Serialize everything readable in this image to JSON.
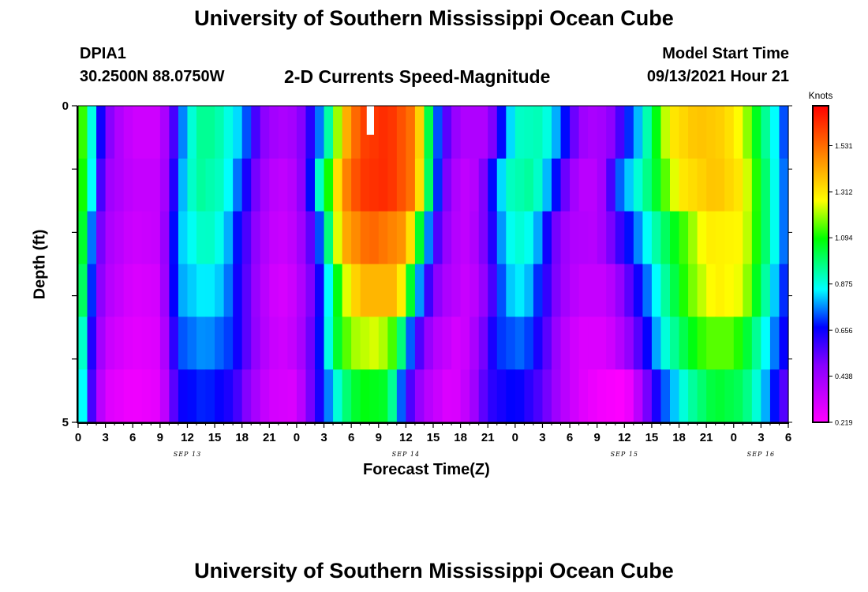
{
  "header": {
    "title": "University of Southern Mississippi Ocean Cube",
    "station": "DPIA1",
    "coords": "30.2500N  88.0750W",
    "subtitle": "2-D Currents Speed-Magnitude",
    "model_start_label": "Model Start Time",
    "model_start_value": "09/13/2021 Hour 21"
  },
  "footer": {
    "title": "University of Southern Mississippi Ocean Cube"
  },
  "chart_data": {
    "type": "heatmap",
    "xlabel": "Forecast Time(Z)",
    "ylabel": "Depth (ft)",
    "y_ticks": [
      "0",
      "5"
    ],
    "ylim": [
      0,
      5
    ],
    "x_ticks": [
      "0",
      "3",
      "6",
      "9",
      "12",
      "15",
      "18",
      "21",
      "0",
      "3",
      "6",
      "9",
      "12",
      "15",
      "18",
      "21",
      "0",
      "3",
      "6",
      "9",
      "12",
      "15",
      "18",
      "21",
      "0",
      "3",
      "6"
    ],
    "date_labels": [
      {
        "hour_offset": 12,
        "label": "SEP 13"
      },
      {
        "hour_offset": 36,
        "label": "SEP 14"
      },
      {
        "hour_offset": 60,
        "label": "SEP 15"
      },
      {
        "hour_offset": 75,
        "label": "SEP 16"
      }
    ],
    "x_range_hours": [
      0,
      78
    ],
    "colorbar": {
      "title": "Knots",
      "ticks": [
        0.219,
        0.438,
        0.656,
        0.875,
        1.094,
        1.312,
        1.531
      ],
      "range": [
        0.219,
        1.72
      ]
    },
    "depth_layers": [
      {
        "depth": 0.0,
        "anchors": [
          [
            0,
            1.25
          ],
          [
            1,
            1.0
          ],
          [
            2,
            0.75
          ],
          [
            3,
            0.55
          ],
          [
            4,
            0.42
          ],
          [
            6,
            0.33
          ],
          [
            8.5,
            0.33
          ],
          [
            10,
            0.45
          ],
          [
            11,
            0.7
          ],
          [
            13,
            0.95
          ],
          [
            15,
            0.95
          ],
          [
            18,
            0.8
          ],
          [
            20,
            0.5
          ],
          [
            22,
            0.4
          ],
          [
            24,
            0.43
          ],
          [
            25,
            0.55
          ],
          [
            27,
            0.82
          ],
          [
            28,
            1.05
          ],
          [
            29,
            1.35
          ],
          [
            31,
            1.6
          ],
          [
            34,
            1.65
          ],
          [
            37,
            1.5
          ],
          [
            38,
            1.2
          ],
          [
            39,
            0.85
          ],
          [
            40,
            0.6
          ],
          [
            42,
            0.4
          ],
          [
            45,
            0.4
          ],
          [
            46,
            0.6
          ],
          [
            48,
            0.9
          ],
          [
            51,
            0.92
          ],
          [
            53,
            0.75
          ],
          [
            55,
            0.45
          ],
          [
            57,
            0.4
          ],
          [
            59,
            0.5
          ],
          [
            60,
            0.65
          ],
          [
            62,
            0.85
          ],
          [
            63,
            1.0
          ],
          [
            65,
            1.3
          ],
          [
            68,
            1.38
          ],
          [
            71,
            1.35
          ],
          [
            73,
            1.25
          ],
          [
            75,
            1.0
          ],
          [
            77,
            0.8
          ],
          [
            78,
            0.65
          ]
        ]
      },
      {
        "depth": 1.0,
        "anchors": [
          [
            0,
            1.2
          ],
          [
            1,
            1.0
          ],
          [
            2,
            0.7
          ],
          [
            3,
            0.45
          ],
          [
            6,
            0.35
          ],
          [
            9,
            0.35
          ],
          [
            10,
            0.5
          ],
          [
            11,
            0.75
          ],
          [
            13,
            0.95
          ],
          [
            16,
            0.9
          ],
          [
            18,
            0.7
          ],
          [
            20,
            0.45
          ],
          [
            22,
            0.35
          ],
          [
            24,
            0.4
          ],
          [
            25,
            0.55
          ],
          [
            26,
            0.8
          ],
          [
            28,
            1.2
          ],
          [
            29,
            1.45
          ],
          [
            31,
            1.62
          ],
          [
            34,
            1.65
          ],
          [
            37,
            1.5
          ],
          [
            38,
            1.15
          ],
          [
            39,
            0.85
          ],
          [
            40,
            0.55
          ],
          [
            42,
            0.35
          ],
          [
            44,
            0.4
          ],
          [
            45,
            0.6
          ],
          [
            47,
            0.9
          ],
          [
            50,
            0.95
          ],
          [
            52,
            0.75
          ],
          [
            54,
            0.45
          ],
          [
            56,
            0.35
          ],
          [
            58,
            0.45
          ],
          [
            59,
            0.7
          ],
          [
            61,
            0.85
          ],
          [
            63,
            1.0
          ],
          [
            66,
            1.3
          ],
          [
            70,
            1.38
          ],
          [
            73,
            1.3
          ],
          [
            75,
            1.05
          ],
          [
            77,
            0.8
          ],
          [
            78,
            0.7
          ]
        ]
      },
      {
        "depth": 2.0,
        "anchors": [
          [
            0,
            1.2
          ],
          [
            1,
            0.9
          ],
          [
            2,
            0.6
          ],
          [
            3,
            0.42
          ],
          [
            6,
            0.33
          ],
          [
            9,
            0.35
          ],
          [
            10,
            0.55
          ],
          [
            11,
            0.8
          ],
          [
            14,
            0.92
          ],
          [
            16,
            0.85
          ],
          [
            18,
            0.62
          ],
          [
            20,
            0.42
          ],
          [
            22,
            0.33
          ],
          [
            24,
            0.38
          ],
          [
            26,
            0.6
          ],
          [
            28,
            1.1
          ],
          [
            29,
            1.4
          ],
          [
            32,
            1.55
          ],
          [
            36,
            1.45
          ],
          [
            37,
            1.2
          ],
          [
            38,
            0.9
          ],
          [
            39,
            0.62
          ],
          [
            41,
            0.4
          ],
          [
            43,
            0.35
          ],
          [
            45,
            0.55
          ],
          [
            47,
            0.85
          ],
          [
            49,
            0.9
          ],
          [
            51,
            0.75
          ],
          [
            52,
            0.55
          ],
          [
            54,
            0.4
          ],
          [
            57,
            0.38
          ],
          [
            59,
            0.55
          ],
          [
            61,
            0.72
          ],
          [
            63,
            0.9
          ],
          [
            66,
            1.1
          ],
          [
            69,
            1.3
          ],
          [
            73,
            1.28
          ],
          [
            75,
            1.05
          ],
          [
            77,
            0.8
          ],
          [
            78,
            0.7
          ]
        ]
      },
      {
        "depth": 3.0,
        "anchors": [
          [
            0,
            1.15
          ],
          [
            1,
            0.85
          ],
          [
            2,
            0.55
          ],
          [
            3,
            0.4
          ],
          [
            6,
            0.3
          ],
          [
            9,
            0.32
          ],
          [
            10,
            0.55
          ],
          [
            11,
            0.78
          ],
          [
            14,
            0.85
          ],
          [
            16,
            0.8
          ],
          [
            18,
            0.6
          ],
          [
            20,
            0.4
          ],
          [
            22,
            0.3
          ],
          [
            24,
            0.35
          ],
          [
            26,
            0.55
          ],
          [
            28,
            0.95
          ],
          [
            29,
            1.2
          ],
          [
            31,
            1.4
          ],
          [
            35,
            1.4
          ],
          [
            36,
            1.2
          ],
          [
            37,
            0.9
          ],
          [
            38,
            0.65
          ],
          [
            40,
            0.42
          ],
          [
            43,
            0.33
          ],
          [
            45,
            0.5
          ],
          [
            47,
            0.8
          ],
          [
            49,
            0.85
          ],
          [
            51,
            0.65
          ],
          [
            53,
            0.45
          ],
          [
            55,
            0.35
          ],
          [
            58,
            0.35
          ],
          [
            60,
            0.5
          ],
          [
            62,
            0.7
          ],
          [
            64,
            0.9
          ],
          [
            67,
            1.15
          ],
          [
            70,
            1.3
          ],
          [
            73,
            1.25
          ],
          [
            75,
            1.0
          ],
          [
            77,
            0.75
          ],
          [
            78,
            0.65
          ]
        ]
      },
      {
        "depth": 4.0,
        "anchors": [
          [
            0,
            1.05
          ],
          [
            1,
            0.75
          ],
          [
            2,
            0.5
          ],
          [
            3,
            0.35
          ],
          [
            6,
            0.28
          ],
          [
            9,
            0.3
          ],
          [
            10,
            0.5
          ],
          [
            11,
            0.72
          ],
          [
            14,
            0.78
          ],
          [
            17,
            0.7
          ],
          [
            19,
            0.5
          ],
          [
            21,
            0.35
          ],
          [
            23,
            0.32
          ],
          [
            25,
            0.45
          ],
          [
            27,
            0.75
          ],
          [
            28,
            1.0
          ],
          [
            30,
            1.2
          ],
          [
            33,
            1.25
          ],
          [
            35,
            1.1
          ],
          [
            36,
            0.85
          ],
          [
            37,
            0.62
          ],
          [
            39,
            0.4
          ],
          [
            42,
            0.3
          ],
          [
            44,
            0.45
          ],
          [
            46,
            0.7
          ],
          [
            49,
            0.75
          ],
          [
            51,
            0.6
          ],
          [
            53,
            0.4
          ],
          [
            55,
            0.3
          ],
          [
            58,
            0.3
          ],
          [
            60,
            0.42
          ],
          [
            62,
            0.6
          ],
          [
            64,
            0.85
          ],
          [
            67,
            1.05
          ],
          [
            69,
            1.15
          ],
          [
            72,
            1.15
          ],
          [
            74,
            1.0
          ],
          [
            76,
            0.8
          ],
          [
            78,
            0.62
          ]
        ]
      },
      {
        "depth": 5.0,
        "anchors": [
          [
            0,
            1.0
          ],
          [
            1,
            0.7
          ],
          [
            2,
            0.45
          ],
          [
            3,
            0.3
          ],
          [
            6,
            0.25
          ],
          [
            9,
            0.28
          ],
          [
            10,
            0.45
          ],
          [
            11,
            0.65
          ],
          [
            14,
            0.7
          ],
          [
            17,
            0.62
          ],
          [
            19,
            0.45
          ],
          [
            21,
            0.32
          ],
          [
            24,
            0.3
          ],
          [
            25,
            0.45
          ],
          [
            27,
            0.7
          ],
          [
            29,
            0.95
          ],
          [
            31,
            1.08
          ],
          [
            34,
            1.05
          ],
          [
            35,
            0.85
          ],
          [
            36,
            0.62
          ],
          [
            38,
            0.4
          ],
          [
            41,
            0.28
          ],
          [
            43,
            0.38
          ],
          [
            45,
            0.6
          ],
          [
            48,
            0.68
          ],
          [
            51,
            0.55
          ],
          [
            53,
            0.4
          ],
          [
            55,
            0.3
          ],
          [
            57,
            0.25
          ],
          [
            60,
            0.22
          ],
          [
            61,
            0.3
          ],
          [
            62,
            0.45
          ],
          [
            64,
            0.7
          ],
          [
            67,
            0.92
          ],
          [
            70,
            1.05
          ],
          [
            73,
            1.0
          ],
          [
            75,
            0.85
          ],
          [
            77,
            0.62
          ],
          [
            78,
            0.5
          ]
        ]
      }
    ]
  }
}
